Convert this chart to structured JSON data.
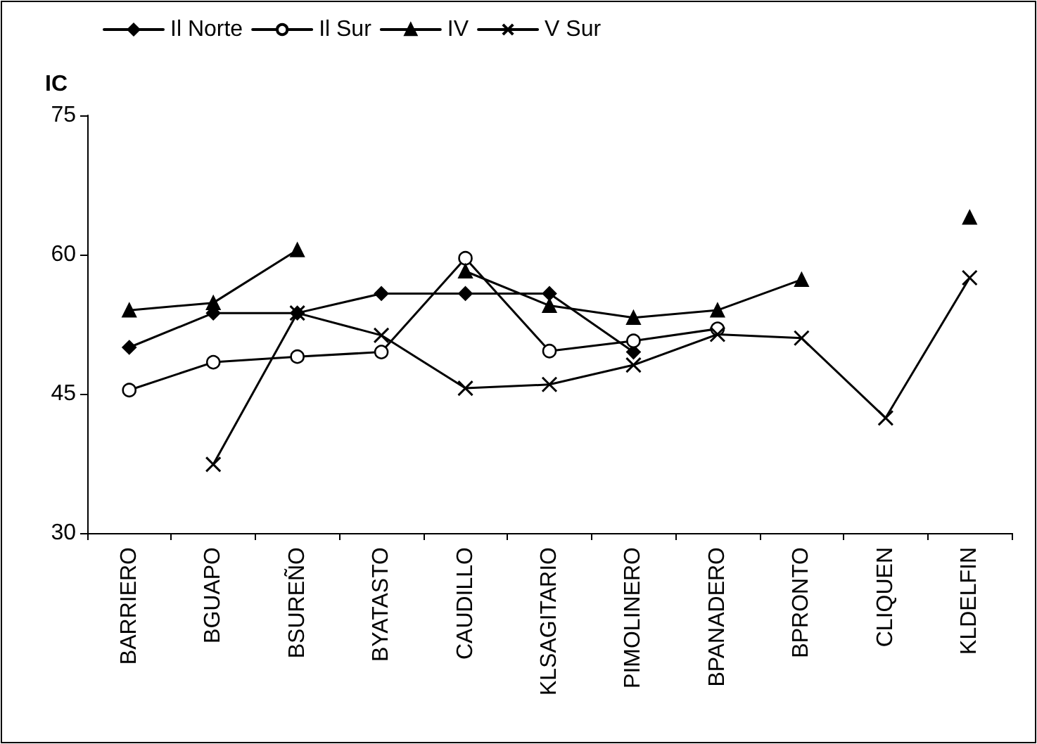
{
  "chart_data": {
    "type": "line",
    "ylabel": "IC",
    "categories": [
      "BARRIERO",
      "BGUAPO",
      "BSUREÑO",
      "BYATASTO",
      "CAUDILLO",
      "KLSAGITARIO",
      "PIMOLINERO",
      "BPANADERO",
      "BPRONTO",
      "CLIQUEN",
      "KLDELFIN"
    ],
    "series": [
      {
        "name": "Il Norte",
        "color": "#000000",
        "marker": "diamond",
        "values": [
          50,
          53.7,
          53.7,
          55.8,
          55.8,
          55.8,
          49.5,
          null,
          null,
          null,
          null
        ]
      },
      {
        "name": "Il Sur",
        "color": "#000000",
        "marker": "circle",
        "values": [
          45.4,
          48.4,
          49,
          49.5,
          59.6,
          49.6,
          50.7,
          52,
          null,
          null,
          null
        ]
      },
      {
        "name": "IV",
        "color": "#000000",
        "marker": "triangle",
        "values": [
          54,
          54.8,
          60.5,
          null,
          58.2,
          54.5,
          53.2,
          54,
          57.3,
          null,
          64
        ]
      },
      {
        "name": "V Sur",
        "color": "#000000",
        "marker": "cross",
        "values": [
          null,
          37.4,
          53.7,
          51.3,
          45.6,
          46,
          48.1,
          51.4,
          51,
          42.4,
          57.5
        ]
      }
    ],
    "ylim": [
      30,
      75
    ],
    "yticks": [
      30,
      45,
      60,
      75
    ],
    "grid": false,
    "legend": "top left",
    "line_style": "solid"
  }
}
